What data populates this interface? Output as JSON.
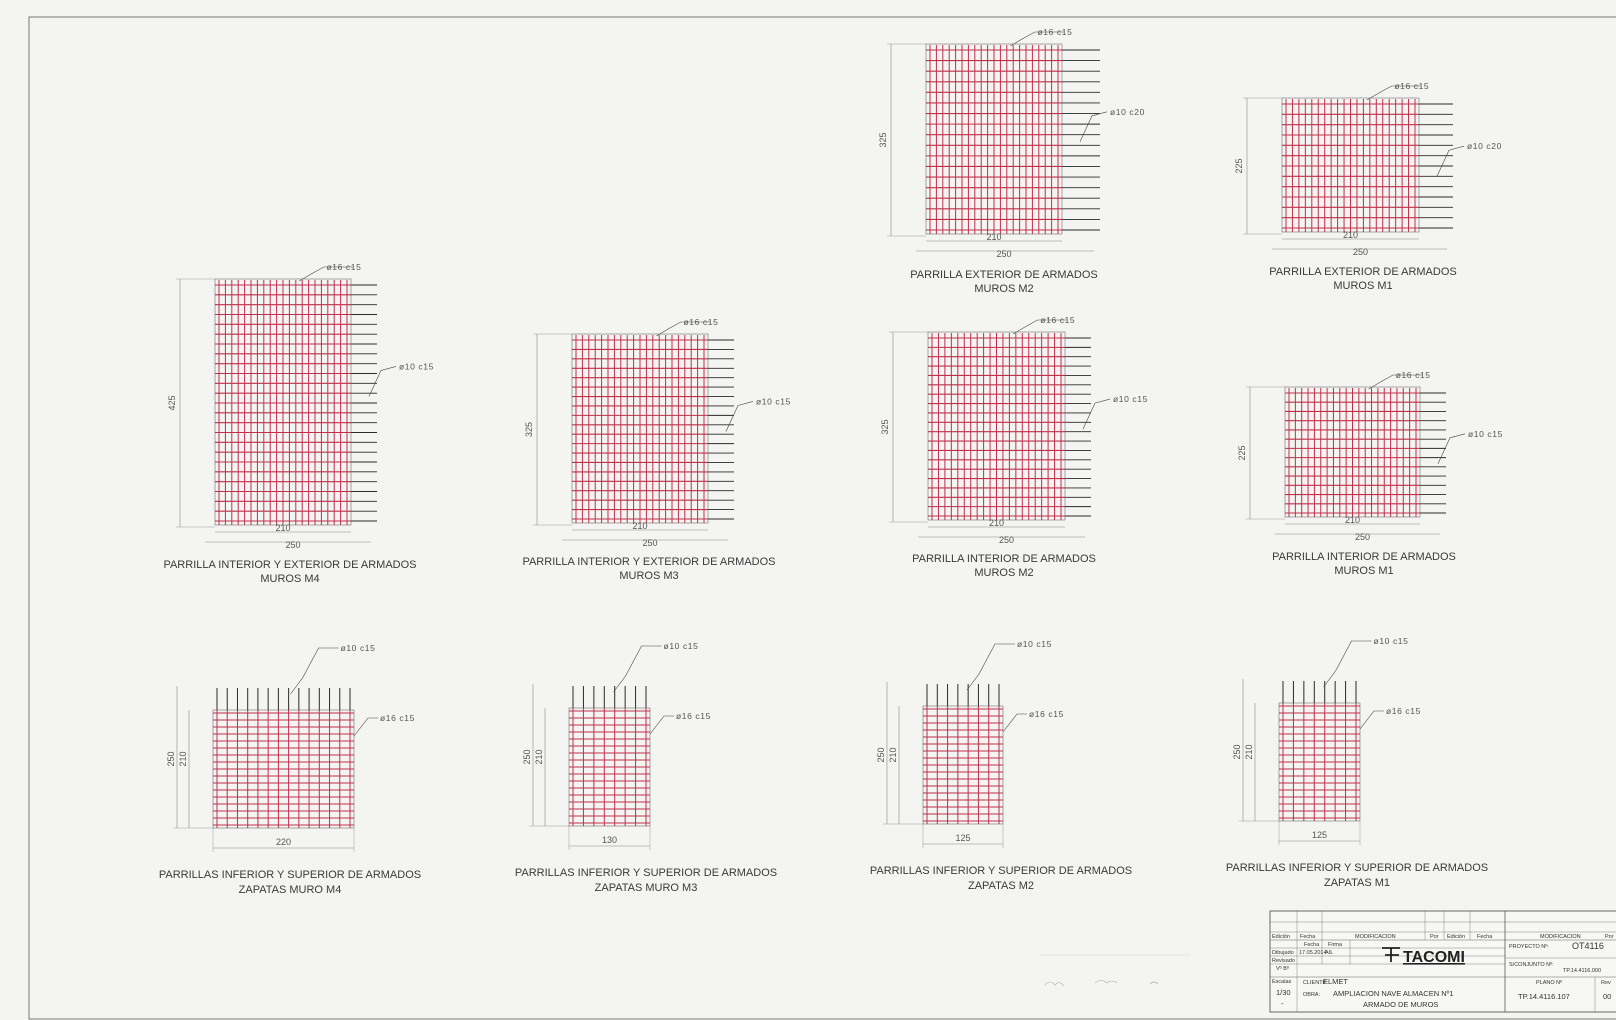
{
  "panels": [
    {
      "caption1": "PARRILLA EXTERIOR DE ARMADOS",
      "caption2": "MUROS M2",
      "bar_top": "ø16 c15",
      "bar_side": "ø10 c20",
      "h": "325",
      "w_inner": "210",
      "w_outer": "250"
    },
    {
      "caption1": "PARRILLA EXTERIOR DE ARMADOS",
      "caption2": "MUROS M1",
      "bar_top": "ø16 c15",
      "bar_side": "ø10 c20",
      "h": "225",
      "w_inner": "210",
      "w_outer": "250"
    },
    {
      "caption1": "PARRILLA INTERIOR Y EXTERIOR DE ARMADOS",
      "caption2": "MUROS M4",
      "bar_top": "ø16 c15",
      "bar_side": "ø10 c15",
      "h": "425",
      "w_inner": "210",
      "w_outer": "250"
    },
    {
      "caption1": "PARRILLA INTERIOR Y EXTERIOR DE ARMADOS",
      "caption2": "MUROS M3",
      "bar_top": "ø16 c15",
      "bar_side": "ø10 c15",
      "h": "325",
      "w_inner": "210",
      "w_outer": "250"
    },
    {
      "caption1": "PARRILLA INTERIOR DE ARMADOS",
      "caption2": "MUROS M2",
      "bar_top": "ø16 c15",
      "bar_side": "ø10 c15",
      "h": "325",
      "w_inner": "210",
      "w_outer": "250"
    },
    {
      "caption1": "PARRILLA INTERIOR DE ARMADOS",
      "caption2": "MUROS M1",
      "bar_top": "ø16 c15",
      "bar_side": "ø10 c15",
      "h": "225",
      "w_inner": "210",
      "w_outer": "250"
    },
    {
      "caption1": "PARRILLAS INFERIOR Y SUPERIOR DE ARMADOS",
      "caption2": "ZAPATAS MURO M4",
      "bar_top": "ø10 c15",
      "bar_side": "ø16 c15",
      "h_outer": "250",
      "h_inner": "210",
      "w": "220"
    },
    {
      "caption1": "PARRILLAS INFERIOR Y SUPERIOR DE ARMADOS",
      "caption2": "ZAPATAS MURO M3",
      "bar_top": "ø10 c15",
      "bar_side": "ø16 c15",
      "h_outer": "250",
      "h_inner": "210",
      "w": "130"
    },
    {
      "caption1": "PARRILLAS INFERIOR Y SUPERIOR DE ARMADOS",
      "caption2": "ZAPATAS M2",
      "bar_top": "ø10 c15",
      "bar_side": "ø16 c15",
      "h_outer": "250",
      "h_inner": "210",
      "w": "125"
    },
    {
      "caption1": "PARRILLAS INFERIOR Y SUPERIOR DE ARMADOS",
      "caption2": "ZAPATAS M1",
      "bar_top": "ø10 c15",
      "bar_side": "ø16 c15",
      "h_outer": "250",
      "h_inner": "210",
      "w": "125"
    }
  ],
  "title_block": {
    "hdr_edicion": "Edición",
    "hdr_fecha": "Fecha",
    "hdr_modificacion": "MODIFICACION",
    "hdr_por": "Por",
    "hdr_edicion2": "Edición",
    "hdr_fecha2": "Fecha",
    "hdr_modificacion2": "MODIFICACION",
    "hdr_por2": "Por",
    "fecha_label": "Fecha",
    "firma_label": "Firma",
    "dibujado": "Dibujado",
    "fecha_dibujado": "17.05.2014",
    "firma_dibujado": "AIL",
    "revisado": "Revisado",
    "vobo": "Vº Bº",
    "logo_text": "TACOMI",
    "escalas_label": "Escalas",
    "escala": "1/30",
    "escala2": "-",
    "cliente_label": "CLIENTE:",
    "cliente": "ELMET",
    "obra_label": "OBRA:",
    "obra": "AMPLIACION NAVE ALMACEN Nº1",
    "obra2": "ARMADO DE MUROS",
    "proyecto_label": "PROYECTO Nº:",
    "proyecto": "OT4116",
    "subconjunto_label": "S/CONJUNTO Nº:",
    "subconjunto": "TP.14.4116.000",
    "plano_label": "PLANO Nº",
    "rev_label": "Rev",
    "plano": "TP.14.4116.107",
    "rev": "00"
  },
  "colors": {
    "paper": "#f4f4f2",
    "bar_red": "#c0304a",
    "bar_black": "#2a2a2a",
    "dim_line": "#888888"
  }
}
